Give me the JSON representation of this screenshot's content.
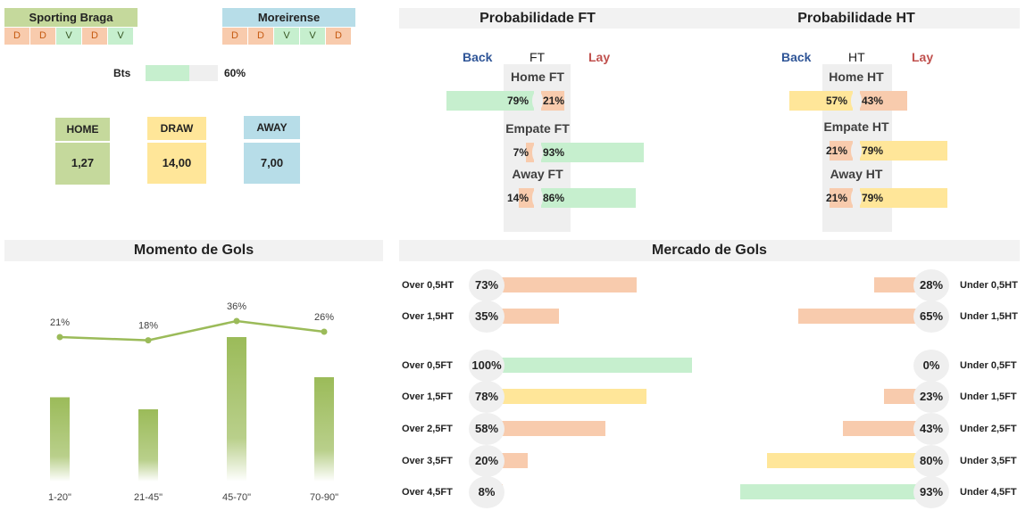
{
  "home_team": {
    "name": "Sporting Braga",
    "form": [
      "D",
      "D",
      "V",
      "D",
      "V"
    ],
    "color": "#c5d99c"
  },
  "away_team": {
    "name": "Moreirense",
    "form": [
      "D",
      "D",
      "V",
      "V",
      "D"
    ],
    "color": "#b7dde8"
  },
  "bts": {
    "label": "Bts",
    "value": "60%",
    "fraction": 0.6
  },
  "odds": {
    "home": {
      "label": "HOME",
      "value": "1,27",
      "color": "#c5d99c"
    },
    "draw": {
      "label": "DRAW",
      "value": "14,00",
      "color": "#ffe699"
    },
    "away": {
      "label": "AWAY",
      "value": "7,00",
      "color": "#b7dde8"
    }
  },
  "prob_ft": {
    "title": "Probabilidade FT",
    "back": "Back",
    "mid": "FT",
    "lay": "Lay",
    "rows": [
      {
        "label": "Home FT",
        "left": "79%",
        "right": "21%",
        "left_frac": 0.79,
        "right_frac": 0.21
      },
      {
        "label": "Empate FT",
        "left": "7%",
        "right": "93%",
        "left_frac": 0.07,
        "right_frac": 0.93
      },
      {
        "label": "Away FT",
        "left": "14%",
        "right": "86%",
        "left_frac": 0.14,
        "right_frac": 0.86
      }
    ]
  },
  "prob_ht": {
    "title": "Probabilidade HT",
    "back": "Back",
    "mid": "HT",
    "lay": "Lay",
    "rows": [
      {
        "label": "Home HT",
        "left": "57%",
        "right": "43%",
        "left_frac": 0.57,
        "right_frac": 0.43
      },
      {
        "label": "Empate HT",
        "left": "21%",
        "right": "79%",
        "left_frac": 0.21,
        "right_frac": 0.79
      },
      {
        "label": "Away HT",
        "left": "21%",
        "right": "79%",
        "left_frac": 0.21,
        "right_frac": 0.79
      }
    ]
  },
  "momento": {
    "title": "Momento de Gols",
    "chart_data": {
      "type": "bar",
      "categories": [
        "1-20\"",
        "21-45\"",
        "45-70\"",
        "70-90\""
      ],
      "line_values": [
        21,
        18,
        36,
        26
      ],
      "line_labels": [
        "21%",
        "18%",
        "36%",
        "26%"
      ],
      "bar_values": [
        21,
        18,
        36,
        26
      ],
      "line_color": "#9bbb59",
      "bar_color": "#9bbb59"
    }
  },
  "mercado": {
    "title": "Mercado de Gols",
    "over": [
      {
        "label": "Over 0,5HT",
        "value": "73%",
        "frac": 0.73,
        "color": "o"
      },
      {
        "label": "Over 1,5HT",
        "value": "35%",
        "frac": 0.35,
        "color": "o"
      },
      {
        "label": "Over 0,5FT",
        "value": "100%",
        "frac": 1.0,
        "color": "g"
      },
      {
        "label": "Over 1,5FT",
        "value": "78%",
        "frac": 0.78,
        "color": "y"
      },
      {
        "label": "Over 2,5FT",
        "value": "58%",
        "frac": 0.58,
        "color": "o"
      },
      {
        "label": "Over 3,5FT",
        "value": "20%",
        "frac": 0.2,
        "color": "o"
      },
      {
        "label": "Over 4,5FT",
        "value": "8%",
        "frac": 0.08,
        "color": "o"
      }
    ],
    "under": [
      {
        "label": "Under 0,5HT",
        "value": "28%",
        "frac": 0.28,
        "color": "o"
      },
      {
        "label": "Under 1,5HT",
        "value": "65%",
        "frac": 0.65,
        "color": "o"
      },
      {
        "label": "Under 0,5FT",
        "value": "0%",
        "frac": 0.0,
        "color": "g"
      },
      {
        "label": "Under 1,5FT",
        "value": "23%",
        "frac": 0.23,
        "color": "o"
      },
      {
        "label": "Under 2,5FT",
        "value": "43%",
        "frac": 0.43,
        "color": "o"
      },
      {
        "label": "Under 3,5FT",
        "value": "80%",
        "frac": 0.8,
        "color": "y"
      },
      {
        "label": "Under 4,5FT",
        "value": "93%",
        "frac": 0.93,
        "color": "g"
      }
    ]
  }
}
